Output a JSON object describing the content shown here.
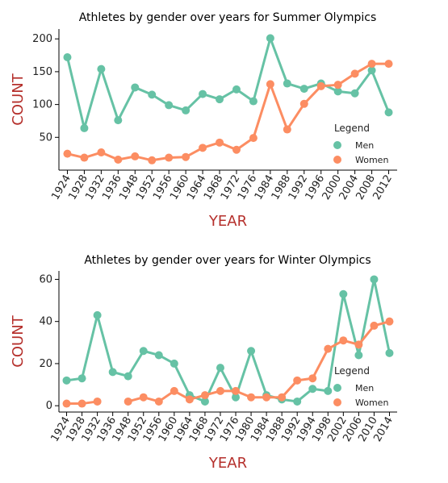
{
  "chart_data": [
    {
      "type": "line",
      "title": "Athletes by gender over years for Summer Olympics",
      "xlabel": "YEAR",
      "ylabel": "COUNT",
      "categories": [
        "1924",
        "1928",
        "1932",
        "1936",
        "1948",
        "1952",
        "1956",
        "1960",
        "1964",
        "1968",
        "1972",
        "1976",
        "1984",
        "1988",
        "1992",
        "1996",
        "2000",
        "2004",
        "2008",
        "2012"
      ],
      "yticks": [
        50,
        100,
        150,
        200
      ],
      "ylim": [
        0,
        215
      ],
      "legend": {
        "title": "Legend",
        "position": "right"
      },
      "series": [
        {
          "name": "Men",
          "color": "#66c2a5",
          "values": [
            172,
            64,
            154,
            76,
            126,
            115,
            99,
            91,
            116,
            108,
            123,
            105,
            201,
            132,
            124,
            132,
            120,
            117,
            152,
            88
          ]
        },
        {
          "name": "Women",
          "color": "#fc8d62",
          "values": [
            25,
            19,
            27,
            16,
            21,
            15,
            19,
            20,
            34,
            42,
            31,
            49,
            131,
            62,
            101,
            128,
            130,
            147,
            162,
            162
          ]
        }
      ]
    },
    {
      "type": "line",
      "title": "Athletes by gender over years for Winter Olympics",
      "xlabel": "YEAR",
      "ylabel": "COUNT",
      "categories": [
        "1924",
        "1928",
        "1932",
        "1936",
        "1948",
        "1952",
        "1956",
        "1960",
        "1964",
        "1968",
        "1972",
        "1976",
        "1980",
        "1984",
        "1988",
        "1992",
        "1994",
        "1998",
        "2002",
        "2006",
        "2010",
        "2014"
      ],
      "yticks": [
        0,
        20,
        40,
        60
      ],
      "ylim": [
        -3,
        64
      ],
      "legend": {
        "title": "Legend",
        "position": "right"
      },
      "series": [
        {
          "name": "Men",
          "color": "#66c2a5",
          "values": [
            12,
            13,
            43,
            16,
            14,
            26,
            24,
            20,
            5,
            2,
            18,
            4,
            26,
            5,
            3,
            2,
            8,
            7,
            53,
            24,
            60,
            25
          ]
        },
        {
          "name": "Women",
          "color": "#fc8d62",
          "values": [
            1,
            1,
            2,
            null,
            2,
            4,
            2,
            7,
            3,
            5,
            7,
            7,
            4,
            4,
            4,
            12,
            13,
            27,
            31,
            29,
            38,
            40
          ]
        }
      ]
    }
  ]
}
